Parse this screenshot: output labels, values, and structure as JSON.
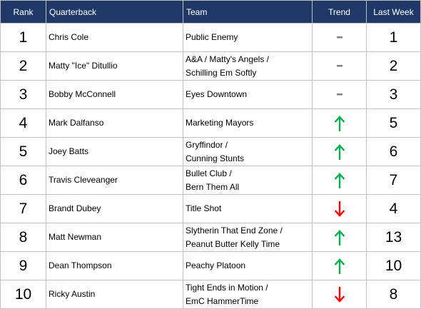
{
  "headers": {
    "rank": "Rank",
    "quarterback": "Quarterback",
    "team": "Team",
    "trend": "Trend",
    "last_week": "Last Week"
  },
  "colors": {
    "header_bg": "#1f3867",
    "header_text": "#ffffff",
    "trend_up": "#00b050",
    "trend_down": "#ff0000",
    "trend_same": "#808080",
    "grid": "#c0c0c0"
  },
  "rows": [
    {
      "rank": "1",
      "quarterback": "Chris Cole",
      "team": [
        "Public Enemy"
      ],
      "trend": "same",
      "last_week": "1"
    },
    {
      "rank": "2",
      "quarterback": "Matty \"Ice\" Ditullio",
      "team": [
        "A&A / Matty's Angels /",
        "Schilling Em Softly"
      ],
      "trend": "same",
      "last_week": "2"
    },
    {
      "rank": "3",
      "quarterback": "Bobby McConnell",
      "team": [
        "Eyes Downtown"
      ],
      "trend": "same",
      "last_week": "3"
    },
    {
      "rank": "4",
      "quarterback": "Mark Dalfanso",
      "team": [
        "Marketing Mayors"
      ],
      "trend": "up",
      "last_week": "5"
    },
    {
      "rank": "5",
      "quarterback": "Joey Batts",
      "team": [
        "Gryffindor /",
        "Cunning Stunts"
      ],
      "trend": "up",
      "last_week": "6"
    },
    {
      "rank": "6",
      "quarterback": "Travis Cleveanger",
      "team": [
        "Bullet Club /",
        "Bern Them All"
      ],
      "trend": "up",
      "last_week": "7"
    },
    {
      "rank": "7",
      "quarterback": "Brandt Dubey",
      "team": [
        "Title Shot"
      ],
      "trend": "down",
      "last_week": "4"
    },
    {
      "rank": "8",
      "quarterback": "Matt Newman",
      "team": [
        "Slytherin That End Zone /",
        "Peanut Butter Kelly Time"
      ],
      "trend": "up",
      "last_week": "13"
    },
    {
      "rank": "9",
      "quarterback": "Dean Thompson",
      "team": [
        "Peachy Platoon"
      ],
      "trend": "up",
      "last_week": "10"
    },
    {
      "rank": "10",
      "quarterback": "Ricky Austin",
      "team": [
        "Tight Ends in Motion /",
        "EmC HammerTime"
      ],
      "trend": "down",
      "last_week": "8"
    }
  ]
}
